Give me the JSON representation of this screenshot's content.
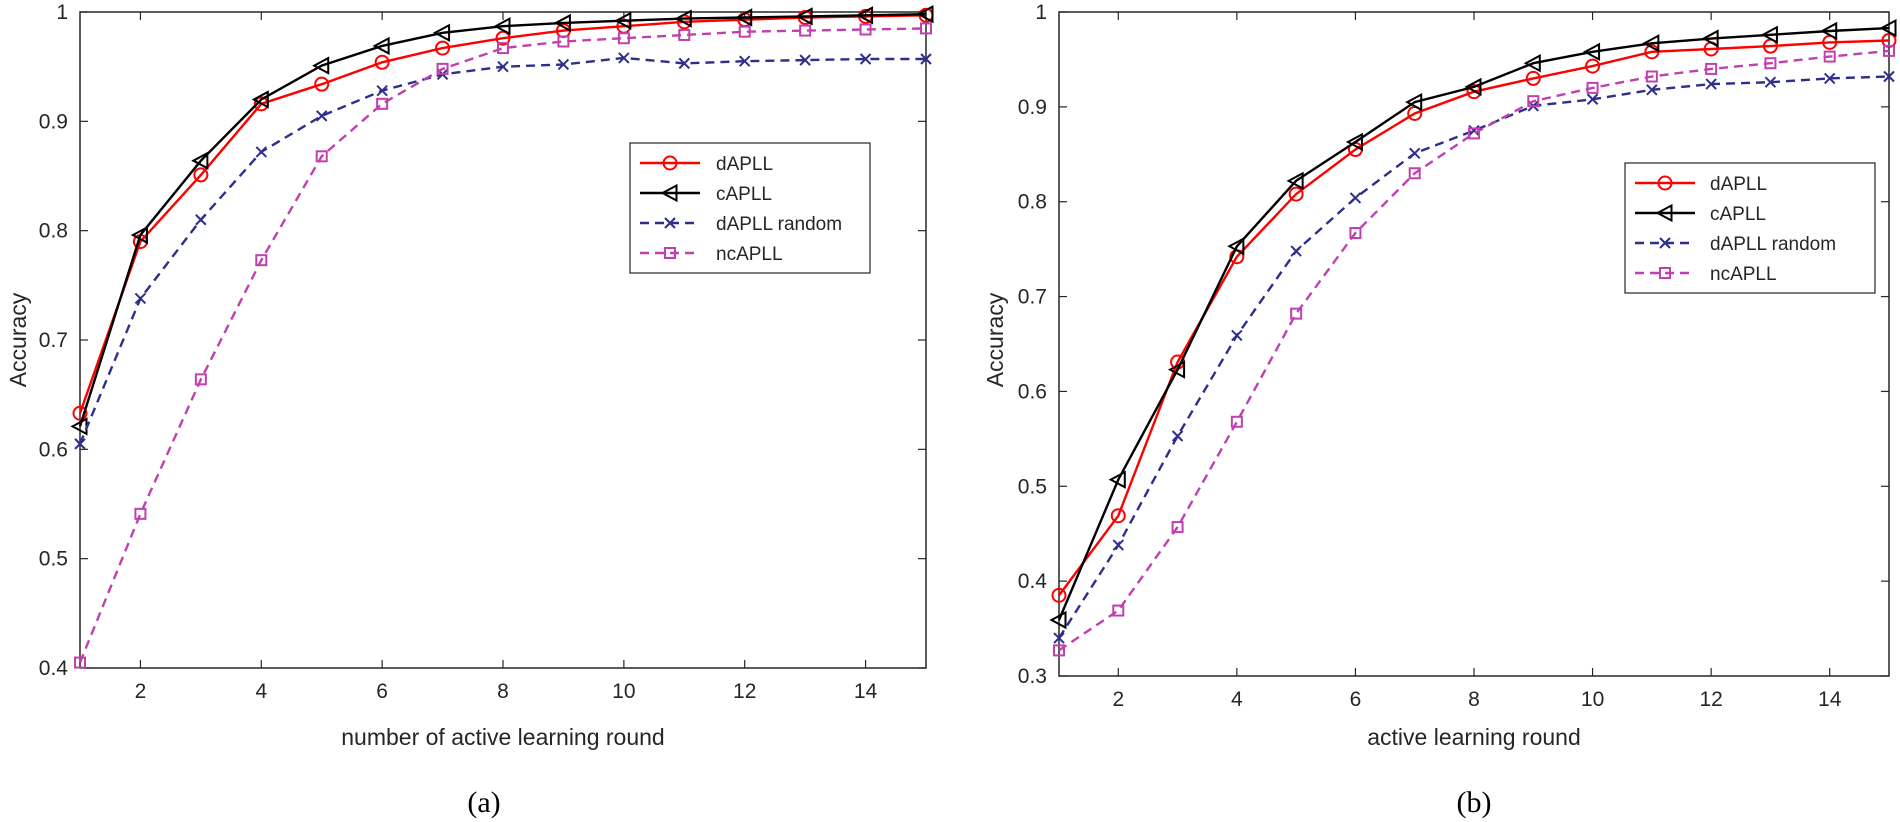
{
  "chart_data": [
    {
      "type": "line",
      "caption": "(a)",
      "xlabel": "number of active learning round",
      "ylabel": "Accuracy",
      "xlim": [
        1,
        15
      ],
      "ylim": [
        0.4,
        1
      ],
      "xticks": [
        2,
        4,
        6,
        8,
        10,
        12,
        14
      ],
      "yticks": [
        0.4,
        0.5,
        0.6,
        0.7,
        0.8,
        0.9,
        1
      ],
      "ytick_labels": [
        "0.4",
        "0.5",
        "0.6",
        "0.7",
        "0.8",
        "0.9",
        "1"
      ],
      "grid": false,
      "legend_position": "right",
      "x": [
        1,
        2,
        3,
        4,
        5,
        6,
        7,
        8,
        9,
        10,
        11,
        12,
        13,
        14,
        15
      ],
      "series": [
        {
          "name": "dAPLL",
          "color": "#ff0000",
          "line": "solid",
          "marker": "circle",
          "values": [
            0.633,
            0.79,
            0.851,
            0.916,
            0.934,
            0.954,
            0.967,
            0.976,
            0.983,
            0.987,
            0.991,
            0.993,
            0.995,
            0.996,
            0.997
          ]
        },
        {
          "name": "cAPLL",
          "color": "#000000",
          "line": "solid",
          "marker": "triangle-left",
          "values": [
            0.621,
            0.796,
            0.864,
            0.92,
            0.951,
            0.969,
            0.981,
            0.987,
            0.99,
            0.992,
            0.994,
            0.995,
            0.996,
            0.997,
            0.998
          ]
        },
        {
          "name": "dAPLL random",
          "color": "#2e2e8c",
          "line": "dashed",
          "marker": "x",
          "values": [
            0.605,
            0.738,
            0.81,
            0.872,
            0.905,
            0.928,
            0.943,
            0.95,
            0.952,
            0.958,
            0.953,
            0.955,
            0.956,
            0.957,
            0.957
          ]
        },
        {
          "name": "ncAPLL",
          "color": "#c040b0",
          "line": "dashed",
          "marker": "square",
          "values": [
            0.405,
            0.541,
            0.664,
            0.773,
            0.868,
            0.916,
            0.948,
            0.967,
            0.973,
            0.976,
            0.979,
            0.982,
            0.983,
            0.984,
            0.985
          ]
        }
      ]
    },
    {
      "type": "line",
      "caption": "(b)",
      "xlabel": "active learning round",
      "ylabel": "Accuracy",
      "xlim": [
        1,
        15
      ],
      "ylim": [
        0.3,
        1
      ],
      "xticks": [
        2,
        4,
        6,
        8,
        10,
        12,
        14
      ],
      "yticks": [
        0.3,
        0.4,
        0.5,
        0.6,
        0.7,
        0.8,
        0.9,
        1
      ],
      "ytick_labels": [
        "0.3",
        "0.4",
        "0.5",
        "0.6",
        "0.7",
        "0.8",
        "0.9",
        "1"
      ],
      "grid": false,
      "legend_position": "right",
      "x": [
        1,
        2,
        3,
        4,
        5,
        6,
        7,
        8,
        9,
        10,
        11,
        12,
        13,
        14,
        15
      ],
      "series": [
        {
          "name": "dAPLL",
          "color": "#ff0000",
          "line": "solid",
          "marker": "circle",
          "values": [
            0.385,
            0.469,
            0.631,
            0.742,
            0.808,
            0.855,
            0.893,
            0.916,
            0.93,
            0.943,
            0.958,
            0.961,
            0.964,
            0.968,
            0.97
          ]
        },
        {
          "name": "cAPLL",
          "color": "#000000",
          "line": "solid",
          "marker": "triangle-left",
          "values": [
            0.359,
            0.507,
            0.623,
            0.753,
            0.822,
            0.863,
            0.905,
            0.921,
            0.946,
            0.958,
            0.967,
            0.972,
            0.976,
            0.98,
            0.983
          ]
        },
        {
          "name": "dAPLL random",
          "color": "#2e2e8c",
          "line": "dashed",
          "marker": "x",
          "values": [
            0.34,
            0.438,
            0.553,
            0.659,
            0.748,
            0.804,
            0.851,
            0.875,
            0.901,
            0.908,
            0.918,
            0.924,
            0.926,
            0.93,
            0.932
          ]
        },
        {
          "name": "ncAPLL",
          "color": "#c040b0",
          "line": "dashed",
          "marker": "square",
          "values": [
            0.327,
            0.369,
            0.457,
            0.568,
            0.682,
            0.767,
            0.83,
            0.872,
            0.906,
            0.92,
            0.932,
            0.94,
            0.946,
            0.953,
            0.959
          ]
        }
      ]
    }
  ]
}
